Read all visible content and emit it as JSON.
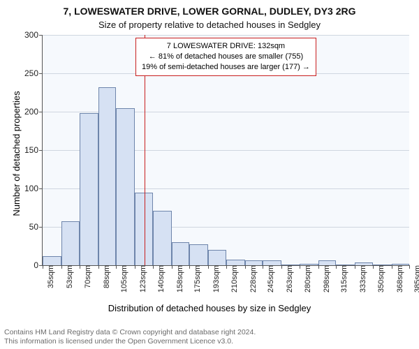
{
  "title": "7, LOWESWATER DRIVE, LOWER GORNAL, DUDLEY, DY3 2RG",
  "subtitle": "Size of property relative to detached houses in Sedgley",
  "ylabel": "Number of detached properties",
  "xlabel": "Distribution of detached houses by size in Sedgley",
  "footer_line1": "Contains HM Land Registry data © Crown copyright and database right 2024.",
  "footer_line2": "This information is licensed under the Open Government Licence v3.0.",
  "annotation": {
    "line1": "7 LOWESWATER DRIVE: 132sqm",
    "line2": "← 81% of detached houses are smaller (755)",
    "line3": "19% of semi-detached houses are larger (177) →",
    "border_color": "#c81e1e"
  },
  "chart": {
    "type": "bar",
    "background_color": "#f6f9fd",
    "grid_color": "#cfd6e0",
    "axis_color": "#555555",
    "bar_fill": "#d6e1f3",
    "bar_border": "#6e85ab",
    "marker_color": "#c81e1e",
    "title_fontsize": 14,
    "subtitle_fontsize": 13,
    "label_fontsize": 13,
    "tick_fontsize": 12,
    "ylim": [
      0,
      300
    ],
    "ytick_step": 50,
    "marker_x": 132,
    "bin_edges": [
      35,
      53,
      70,
      88,
      105,
      123,
      140,
      158,
      175,
      193,
      210,
      228,
      245,
      263,
      280,
      298,
      315,
      333,
      350,
      368,
      385
    ],
    "values": [
      12,
      57,
      198,
      232,
      205,
      95,
      71,
      30,
      27,
      20,
      7,
      6,
      6,
      1,
      2,
      6,
      1,
      4,
      0,
      2
    ],
    "xtick_labels": [
      "35sqm",
      "53sqm",
      "70sqm",
      "88sqm",
      "105sqm",
      "123sqm",
      "140sqm",
      "158sqm",
      "175sqm",
      "193sqm",
      "210sqm",
      "228sqm",
      "245sqm",
      "263sqm",
      "280sqm",
      "298sqm",
      "315sqm",
      "333sqm",
      "350sqm",
      "368sqm",
      "385sqm"
    ]
  }
}
